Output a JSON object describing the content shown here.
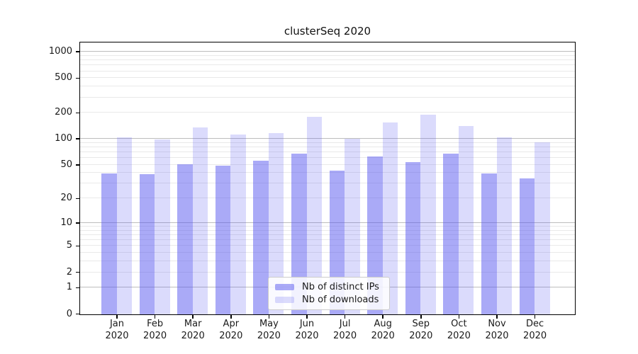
{
  "chart_data": {
    "type": "bar",
    "title": "clusterSeq 2020",
    "categories": [
      "Jan 2020",
      "Feb 2020",
      "Mar 2020",
      "Apr 2020",
      "May 2020",
      "Jun 2020",
      "Jul 2020",
      "Aug 2020",
      "Sep 2020",
      "Oct 2020",
      "Nov 2020",
      "Dec 2020"
    ],
    "series": [
      {
        "name": "Nb of distinct IPs",
        "color": "rgba(85,85,240,0.5)",
        "values": [
          40,
          39,
          51,
          49,
          56,
          68,
          43,
          63,
          54,
          68,
          40,
          35
        ]
      },
      {
        "name": "Nb of downloads",
        "color": "rgba(85,85,240,0.21)",
        "values": [
          106,
          100,
          138,
          114,
          118,
          183,
          101,
          157,
          192,
          143,
          106,
          93
        ]
      }
    ],
    "yscale": "log10(value+1)",
    "ylim": [
      0,
      1270
    ],
    "yticks": [
      0,
      1,
      2,
      5,
      10,
      20,
      50,
      100,
      200,
      500,
      1000
    ],
    "minor_yticks": [
      3,
      4,
      6,
      7,
      8,
      9,
      30,
      40,
      60,
      70,
      80,
      90,
      300,
      400,
      600,
      700,
      800,
      900
    ],
    "decade_gridlines": [
      1,
      10,
      100,
      1000
    ],
    "grid": true,
    "legend_position": "lower center",
    "colors": {
      "decade_grid": "#bdbdbd",
      "minor_grid": "#e9e9e9",
      "axis": "#000000",
      "text": "#1a1a1a"
    }
  }
}
